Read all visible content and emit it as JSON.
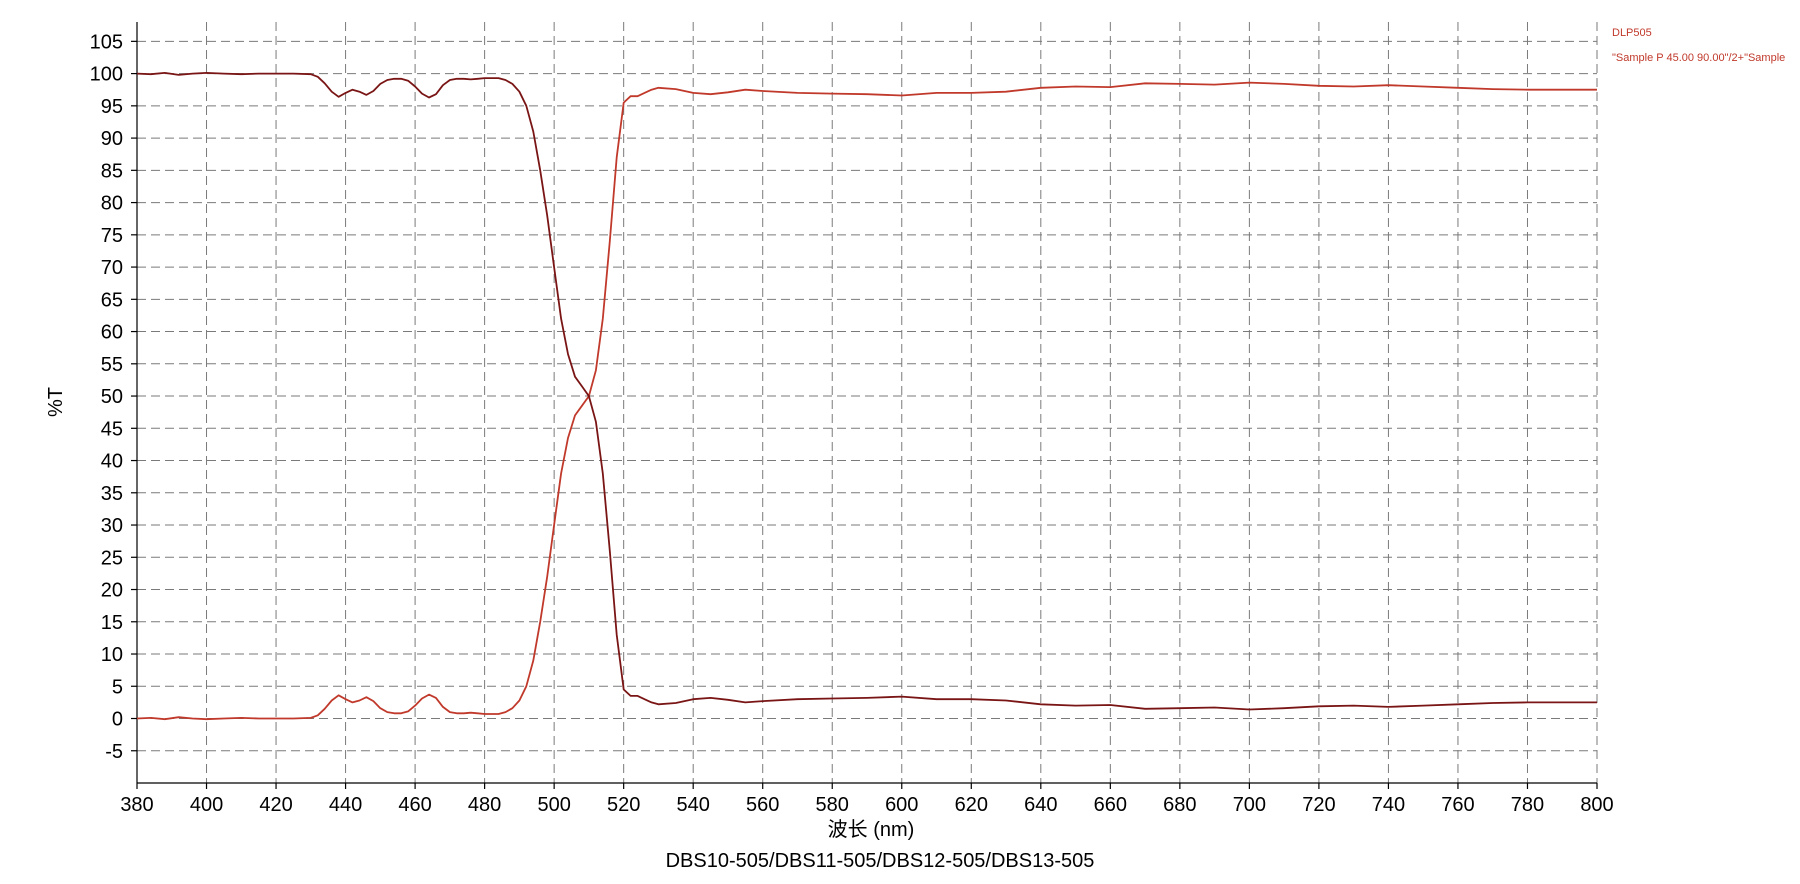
{
  "chart_data": {
    "type": "line",
    "title": "DBS10-505/DBS11-505/DBS12-505/DBS13-505",
    "xlabel": "波长 (nm)",
    "ylabel": "%T",
    "xlim": [
      380,
      800
    ],
    "ylim": [
      -10,
      108
    ],
    "x_ticks": [
      380,
      400,
      420,
      440,
      460,
      480,
      500,
      520,
      540,
      560,
      580,
      600,
      620,
      640,
      660,
      680,
      700,
      720,
      740,
      760,
      780,
      800
    ],
    "y_ticks": [
      -5,
      0,
      5,
      10,
      15,
      20,
      25,
      30,
      35,
      40,
      45,
      50,
      55,
      60,
      65,
      70,
      75,
      80,
      85,
      90,
      95,
      100,
      105
    ],
    "grid": true,
    "legend_position": "top-right",
    "legend": [
      "DLP505",
      "\"Sample P 45.00 90.00\"/2+\"Sample"
    ],
    "series": [
      {
        "name": "DLP505",
        "color": "#c0392b",
        "x": [
          380,
          384,
          388,
          392,
          396,
          400,
          405,
          410,
          415,
          420,
          425,
          430,
          432,
          434,
          436,
          438,
          440,
          442,
          444,
          446,
          448,
          450,
          452,
          454,
          456,
          458,
          460,
          462,
          464,
          466,
          468,
          470,
          472,
          474,
          476,
          478,
          480,
          482,
          484,
          486,
          488,
          490,
          492,
          494,
          496,
          498,
          500,
          502,
          504,
          506,
          508,
          510,
          512,
          514,
          516,
          518,
          520,
          522,
          524,
          526,
          528,
          530,
          535,
          540,
          545,
          550,
          555,
          560,
          570,
          580,
          590,
          600,
          610,
          620,
          630,
          640,
          650,
          660,
          670,
          680,
          690,
          700,
          710,
          720,
          730,
          740,
          750,
          760,
          770,
          780,
          790,
          800
        ],
        "y": [
          0.0,
          0.1,
          -0.1,
          0.2,
          0.0,
          -0.1,
          0.0,
          0.1,
          0.0,
          0.0,
          0.0,
          0.1,
          0.5,
          1.5,
          2.8,
          3.6,
          3.0,
          2.5,
          2.8,
          3.3,
          2.7,
          1.6,
          1.0,
          0.8,
          0.8,
          1.1,
          2.0,
          3.1,
          3.7,
          3.2,
          1.8,
          1.0,
          0.8,
          0.8,
          0.9,
          0.8,
          0.7,
          0.7,
          0.7,
          1.0,
          1.6,
          2.8,
          5.0,
          9.0,
          15.0,
          22.0,
          30.0,
          38.0,
          43.5,
          47.0,
          48.5,
          50.0,
          54.0,
          62.0,
          74.0,
          87.0,
          95.5,
          96.5,
          96.5,
          97.0,
          97.5,
          97.8,
          97.6,
          97.0,
          96.8,
          97.1,
          97.5,
          97.3,
          97.0,
          96.9,
          96.8,
          96.6,
          97.0,
          97.0,
          97.2,
          97.8,
          98.0,
          97.9,
          98.5,
          98.4,
          98.3,
          98.6,
          98.4,
          98.1,
          98.0,
          98.2,
          98.0,
          97.8,
          97.6,
          97.5,
          97.5,
          97.5
        ]
      },
      {
        "name": "\"Sample P 45.00 90.00\"/2+\"Sample",
        "color": "#7a1515",
        "x": [
          380,
          384,
          388,
          392,
          396,
          400,
          405,
          410,
          415,
          420,
          425,
          430,
          432,
          434,
          436,
          438,
          440,
          442,
          444,
          446,
          448,
          450,
          452,
          454,
          456,
          458,
          460,
          462,
          464,
          466,
          468,
          470,
          472,
          474,
          476,
          478,
          480,
          482,
          484,
          486,
          488,
          490,
          492,
          494,
          496,
          498,
          500,
          502,
          504,
          506,
          508,
          510,
          512,
          514,
          516,
          518,
          520,
          522,
          524,
          526,
          528,
          530,
          535,
          540,
          545,
          550,
          555,
          560,
          570,
          580,
          590,
          600,
          610,
          620,
          630,
          640,
          650,
          660,
          670,
          680,
          690,
          700,
          710,
          720,
          730,
          740,
          750,
          760,
          770,
          780,
          790,
          800
        ],
        "y": [
          100.0,
          99.9,
          100.1,
          99.8,
          100.0,
          100.1,
          100.0,
          99.9,
          100.0,
          100.0,
          100.0,
          99.9,
          99.5,
          98.5,
          97.2,
          96.4,
          97.0,
          97.5,
          97.2,
          96.7,
          97.3,
          98.4,
          99.0,
          99.2,
          99.2,
          98.9,
          98.0,
          96.9,
          96.3,
          96.8,
          98.2,
          99.0,
          99.2,
          99.2,
          99.1,
          99.2,
          99.3,
          99.3,
          99.3,
          99.0,
          98.4,
          97.2,
          95.0,
          91.0,
          85.0,
          78.0,
          70.0,
          62.0,
          56.5,
          53.0,
          51.5,
          50.0,
          46.0,
          38.0,
          26.0,
          13.0,
          4.5,
          3.5,
          3.5,
          3.0,
          2.5,
          2.2,
          2.4,
          3.0,
          3.2,
          2.9,
          2.5,
          2.7,
          3.0,
          3.1,
          3.2,
          3.4,
          3.0,
          3.0,
          2.8,
          2.2,
          2.0,
          2.1,
          1.5,
          1.6,
          1.7,
          1.4,
          1.6,
          1.9,
          2.0,
          1.8,
          2.0,
          2.2,
          2.4,
          2.5,
          2.5,
          2.5
        ]
      }
    ]
  }
}
